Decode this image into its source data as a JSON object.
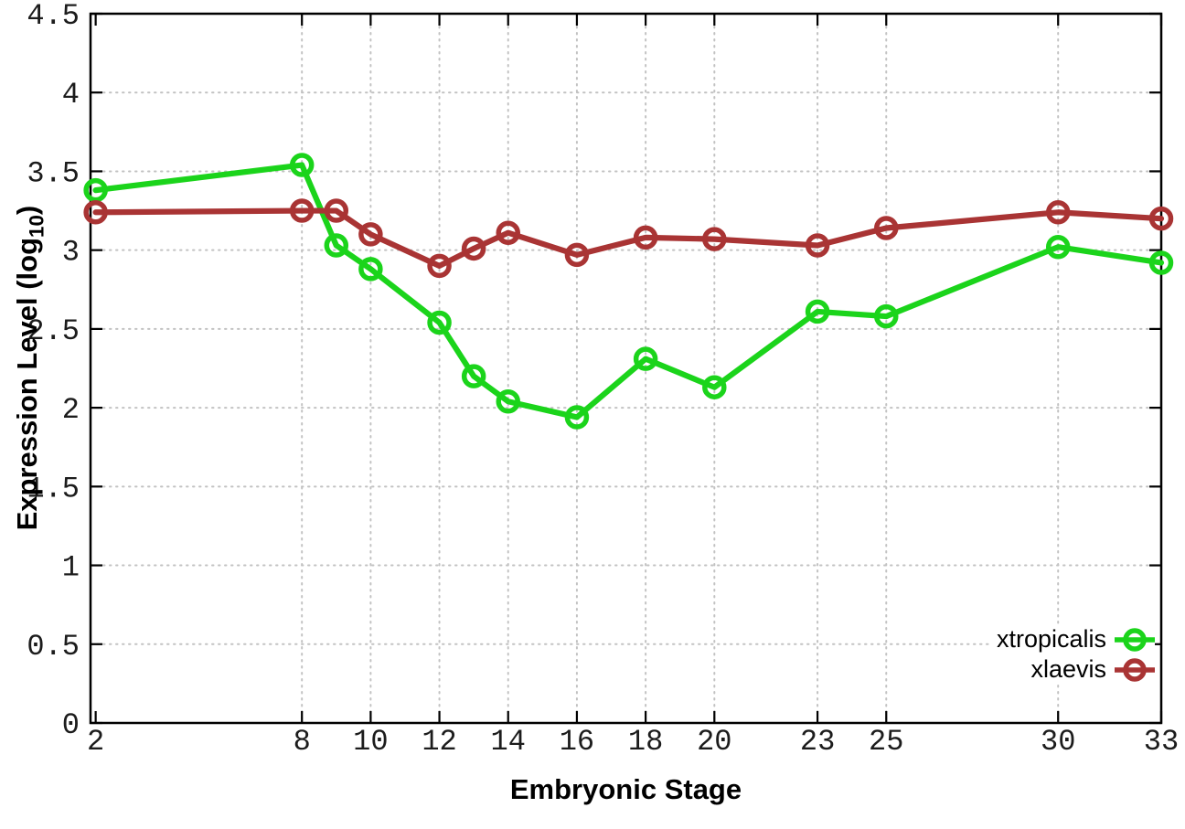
{
  "chart_data": {
    "type": "line",
    "title": "",
    "xlabel": "Embryonic Stage",
    "ylabel": "Expression Level (log10)",
    "ylabel_rich": {
      "prefix": "Expression Level (log",
      "subscript": "10",
      "suffix": ")"
    },
    "x": [
      2,
      8,
      9,
      10,
      12,
      13,
      14,
      16,
      18,
      20,
      23,
      25,
      30,
      33
    ],
    "series": [
      {
        "name": "xtropicalis",
        "color": "#1bd41b",
        "values": [
          3.38,
          3.54,
          3.03,
          2.88,
          2.54,
          2.2,
          2.04,
          1.94,
          2.31,
          2.13,
          2.61,
          2.58,
          3.02,
          2.92
        ]
      },
      {
        "name": "xlaevis",
        "color": "#a93434",
        "values": [
          3.24,
          3.25,
          3.25,
          3.1,
          2.9,
          3.01,
          3.11,
          2.97,
          3.08,
          3.07,
          3.03,
          3.14,
          3.24,
          3.2
        ]
      }
    ],
    "x_tick_values": [
      2,
      8,
      10,
      12,
      14,
      16,
      18,
      20,
      23,
      25,
      30,
      33
    ],
    "x_tick_labels": [
      "2",
      "8",
      "10",
      "12",
      "14",
      "16",
      "18",
      "20",
      "23",
      "25",
      "30",
      "33"
    ],
    "y_tick_values": [
      0,
      0.5,
      1,
      1.5,
      2,
      2.5,
      3,
      3.5,
      4,
      4.5
    ],
    "y_tick_labels": [
      "0",
      "0.5",
      "1",
      "1.5",
      "2",
      "2.5",
      "3",
      "3.5",
      "4",
      "4.5"
    ],
    "xlim": [
      1.85,
      33
    ],
    "ylim": [
      0,
      4.5
    ],
    "grid": true,
    "legend_position": "bottom-right"
  },
  "colors": {
    "background": "#ffffff",
    "border": "#000000",
    "grid": "#c2c2c2",
    "tick_label": "#1c1c1c"
  }
}
